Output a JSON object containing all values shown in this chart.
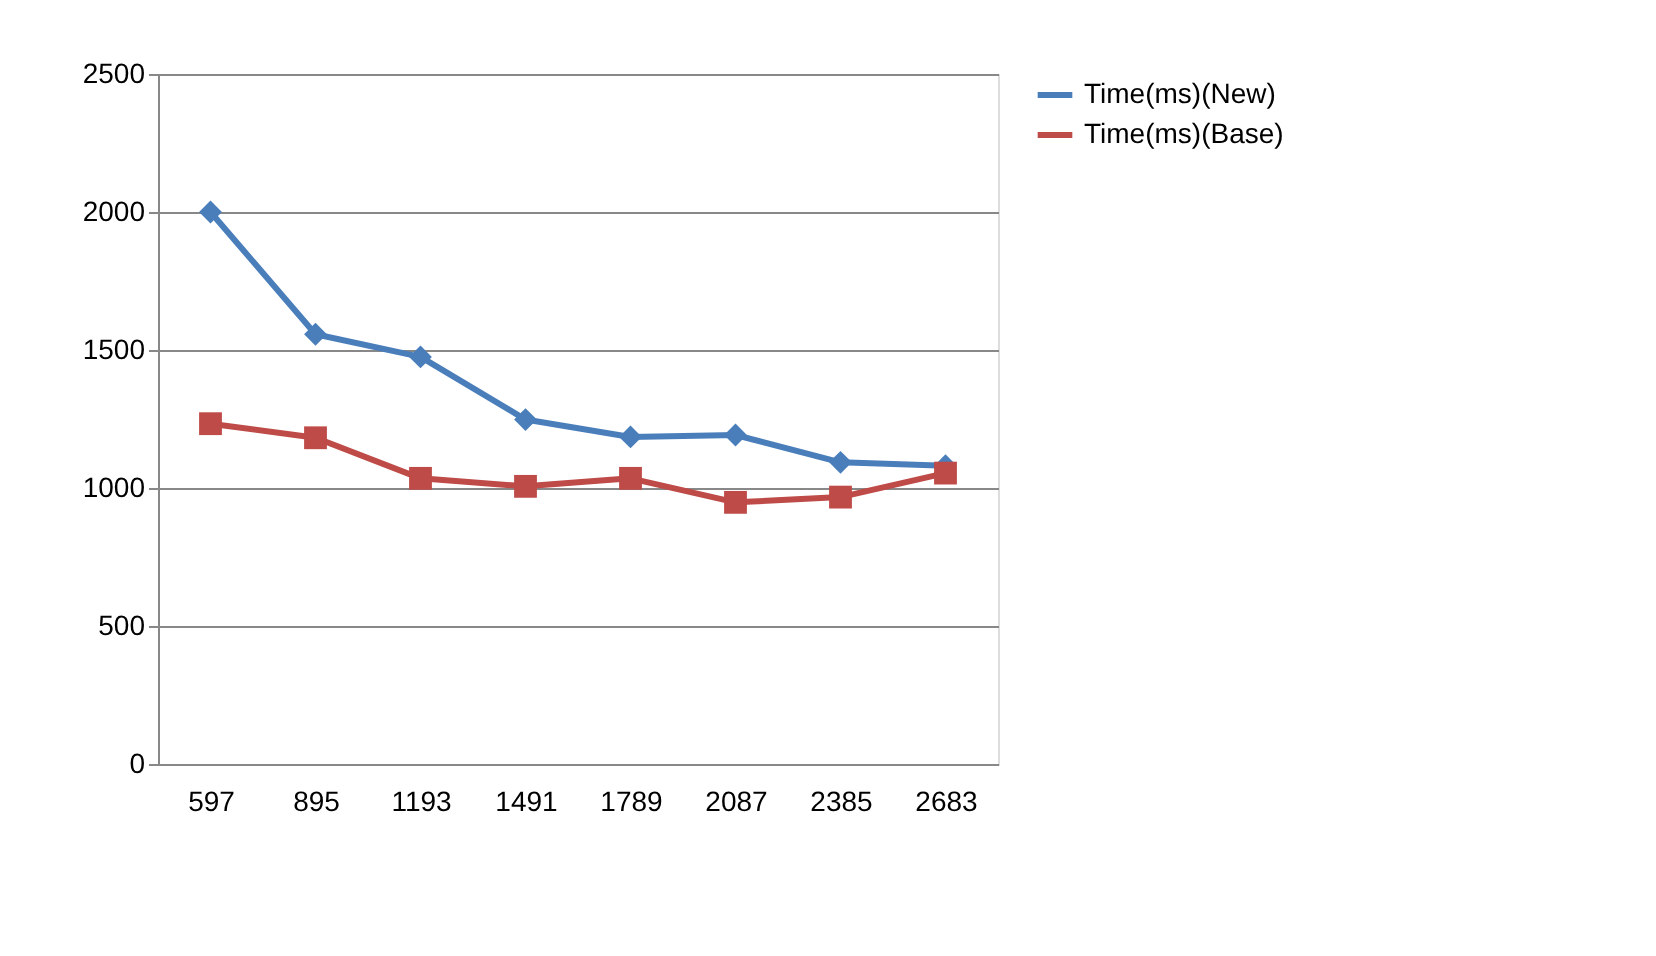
{
  "chart_data": {
    "type": "line",
    "categories": [
      "597",
      "895",
      "1193",
      "1491",
      "1789",
      "2087",
      "2385",
      "2683"
    ],
    "series": [
      {
        "name": "Time(ms)(New)",
        "color": "#4a7ebb",
        "marker": "diamond",
        "values": [
          2000,
          1557,
          1475,
          1248,
          1185,
          1192,
          1093,
          1081
        ]
      },
      {
        "name": "Time(ms)(Base)",
        "color": "#be4b48",
        "marker": "square",
        "values": [
          1233,
          1182,
          1035,
          1006,
          1035,
          948,
          967,
          1054
        ]
      }
    ],
    "ylim": [
      0,
      2500
    ],
    "yticks": [
      0,
      500,
      1000,
      1500,
      2000,
      2500
    ],
    "grid": "y",
    "legend": "right"
  }
}
